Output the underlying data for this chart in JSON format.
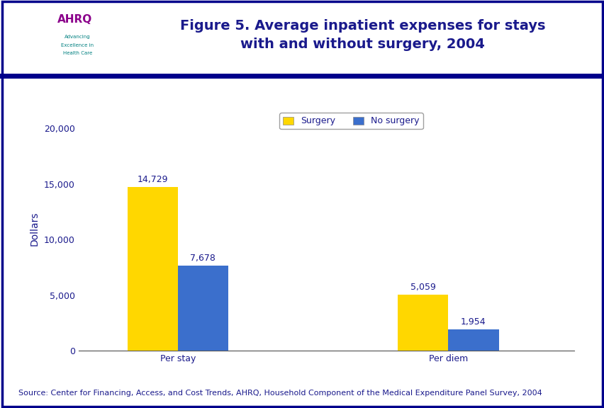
{
  "title_line1": "Figure 5. Average inpatient expenses for stays",
  "title_line2": "with and without surgery, 2004",
  "title_color": "#1A1A8C",
  "title_fontsize": 14,
  "categories": [
    "Per stay",
    "Per diem"
  ],
  "surgery_values": [
    14729,
    5059
  ],
  "no_surgery_values": [
    7678,
    1954
  ],
  "surgery_color": "#FFD700",
  "no_surgery_color": "#3B6FCC",
  "ylabel": "Dollars",
  "ylabel_color": "#1A1A8C",
  "ylim": [
    0,
    22000
  ],
  "yticks": [
    0,
    5000,
    10000,
    15000,
    20000
  ],
  "ytick_labels": [
    "0",
    "5,000",
    "10,000",
    "15,000",
    "20,000"
  ],
  "bar_label_color": "#1A1A8C",
  "bar_label_fontsize": 9,
  "legend_labels": [
    "Surgery",
    "No surgery"
  ],
  "legend_fontsize": 9,
  "source_text": "Source: Center for Financing, Access, and Cost Trends, AHRQ, Household Component of the Medical Expenditure Panel Survey, 2004",
  "source_color": "#1A1A8C",
  "source_fontsize": 8,
  "background_color": "#FFFFFF",
  "header_bg_color": "#FFFFFF",
  "border_color": "#00008B",
  "separator_color": "#00008B",
  "tick_label_fontsize": 9,
  "tick_label_color": "#1A1A8C",
  "bar_width": 0.28,
  "group_positions": [
    1.0,
    2.5
  ],
  "xlim": [
    0.45,
    3.2
  ]
}
